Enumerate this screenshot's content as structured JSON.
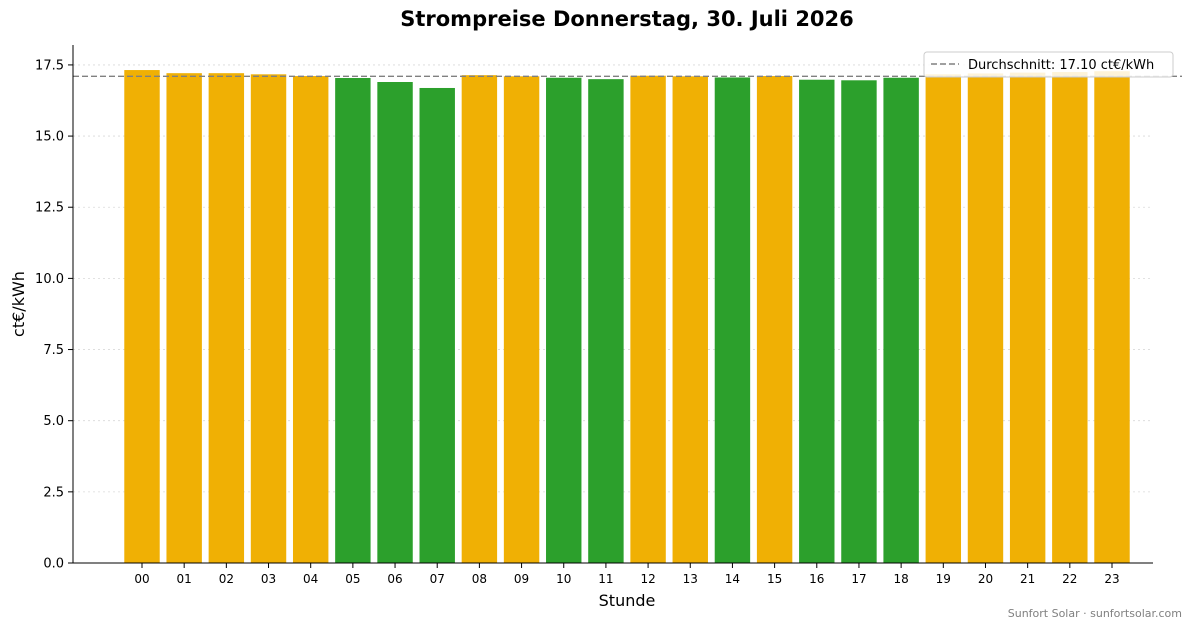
{
  "chart_data": {
    "type": "bar",
    "title": "Strompreise Donnerstag, 30. Juli 2026",
    "xlabel": "Stunde",
    "ylabel": "ct€/kWh",
    "categories": [
      "00",
      "01",
      "02",
      "03",
      "04",
      "05",
      "06",
      "07",
      "08",
      "09",
      "10",
      "11",
      "12",
      "13",
      "14",
      "15",
      "16",
      "17",
      "18",
      "19",
      "20",
      "21",
      "22",
      "23"
    ],
    "values": [
      17.32,
      17.21,
      17.21,
      17.17,
      17.11,
      17.04,
      16.9,
      16.69,
      17.14,
      17.1,
      17.05,
      17.0,
      17.12,
      17.1,
      17.06,
      17.11,
      16.98,
      16.96,
      17.05,
      17.17,
      17.2,
      17.23,
      17.25,
      17.28
    ],
    "bar_colors": [
      "#f0b004",
      "#f0b004",
      "#f0b004",
      "#f0b004",
      "#f0b004",
      "#2ca02c",
      "#2ca02c",
      "#2ca02c",
      "#f0b004",
      "#f0b004",
      "#2ca02c",
      "#2ca02c",
      "#f0b004",
      "#f0b004",
      "#2ca02c",
      "#f0b004",
      "#2ca02c",
      "#2ca02c",
      "#2ca02c",
      "#f0b004",
      "#f0b004",
      "#f0b004",
      "#f0b004",
      "#f0b004"
    ],
    "ylim": [
      0,
      18.2
    ],
    "yticks": [
      "0.0",
      "2.5",
      "5.0",
      "7.5",
      "10.0",
      "12.5",
      "15.0",
      "17.5"
    ],
    "average": 17.1,
    "average_label": "Durchschnitt: 17.10 ct€/kWh",
    "legend_position": "top-right",
    "grid": "horizontal dotted",
    "footer": "Sunfort Solar · sunfortsolar.com"
  }
}
